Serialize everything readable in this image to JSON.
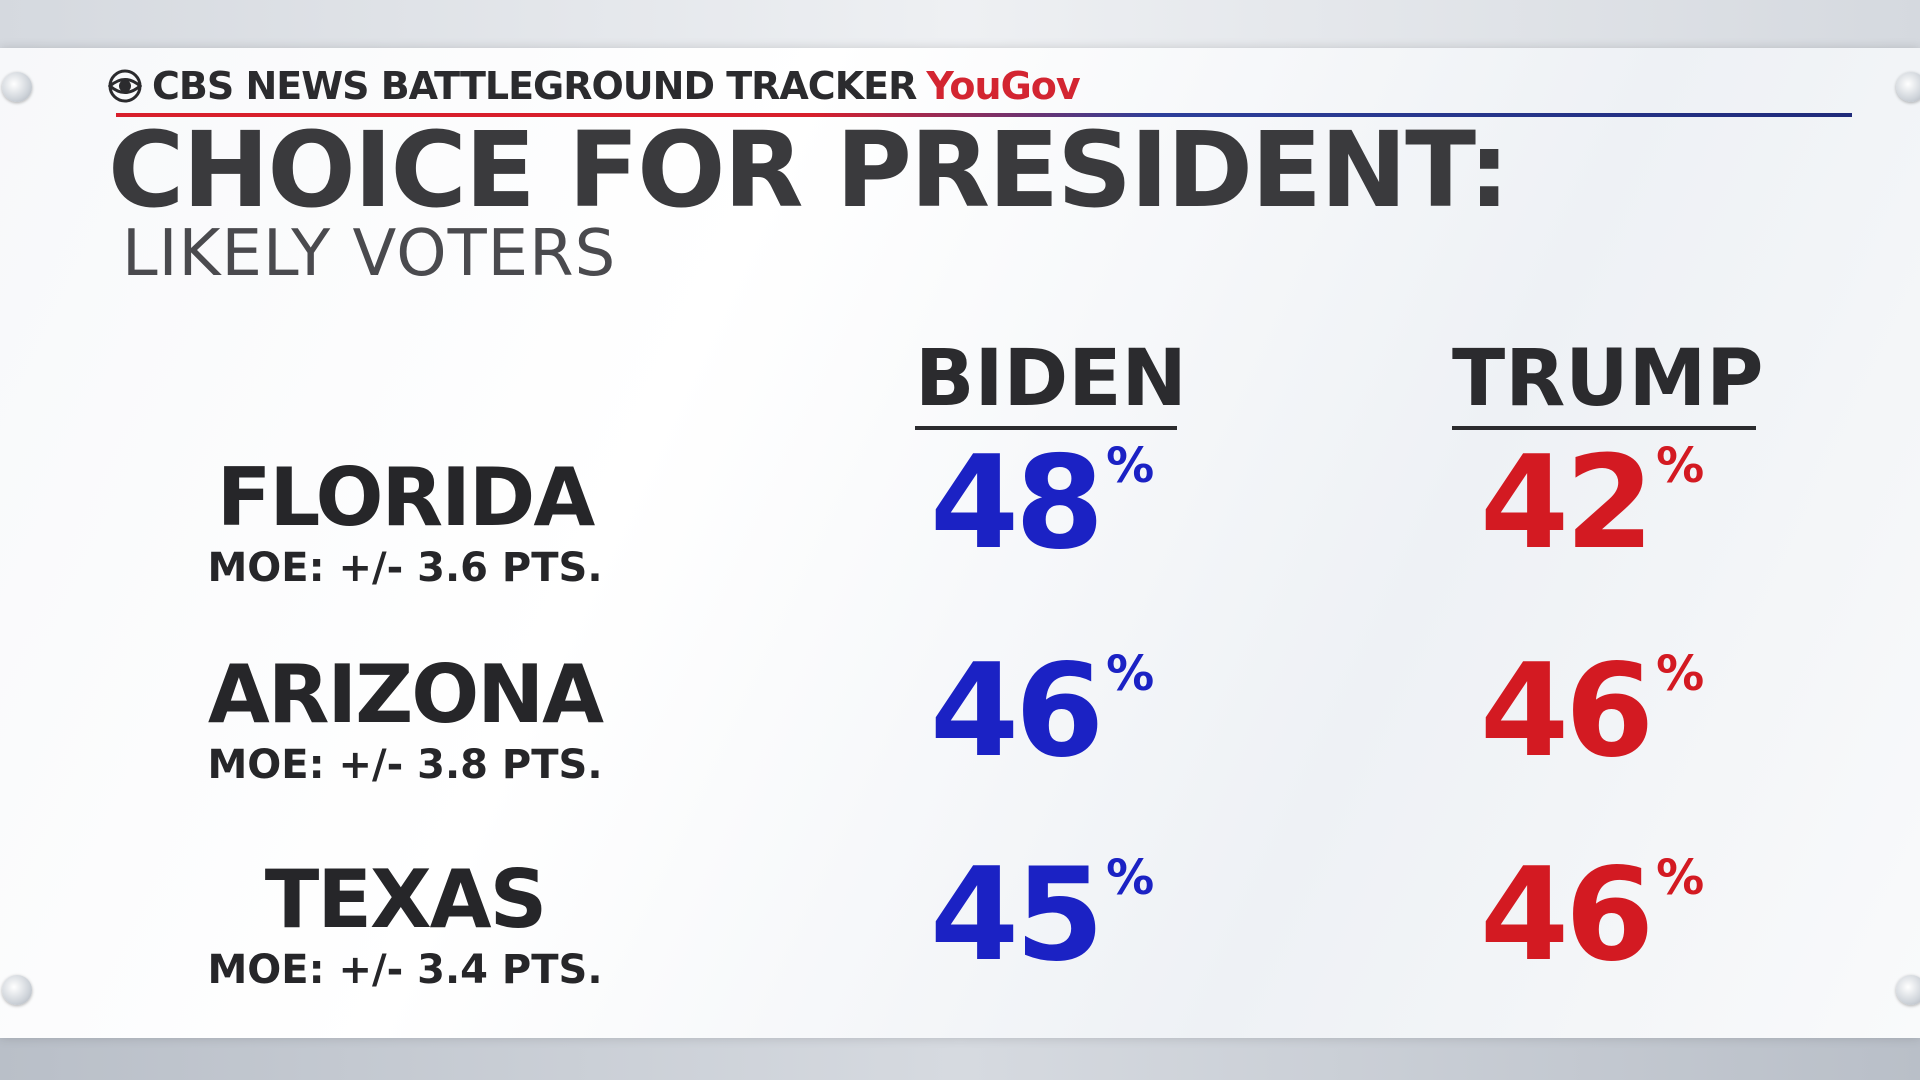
{
  "header": {
    "brand": "CBS NEWS BATTLEGROUND TRACKER",
    "partner": "YouGov"
  },
  "title": "CHOICE FOR PRESIDENT:",
  "subtitle": "LIKELY VOTERS",
  "colors": {
    "biden": "#1b22c4",
    "trump": "#d31a22",
    "text": "#2b2b2e"
  },
  "chart_data": {
    "type": "table",
    "title": "CHOICE FOR PRESIDENT:",
    "subtitle": "LIKELY VOTERS",
    "columns": [
      "BIDEN",
      "TRUMP"
    ],
    "unit": "%",
    "rows": [
      {
        "state": "FLORIDA",
        "moe": "MOE: +/- 3.6 PTS.",
        "biden": 48,
        "trump": 42
      },
      {
        "state": "ARIZONA",
        "moe": "MOE: +/- 3.8 PTS.",
        "biden": 46,
        "trump": 46
      },
      {
        "state": "TEXAS",
        "moe": "MOE: +/- 3.4 PTS.",
        "biden": 45,
        "trump": 46
      }
    ]
  }
}
